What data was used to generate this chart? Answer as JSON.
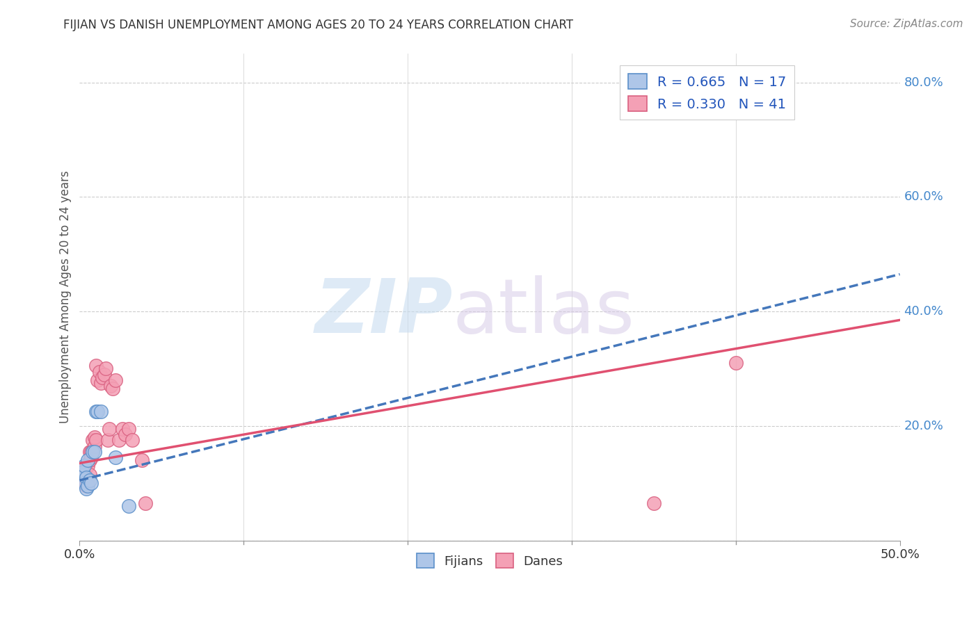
{
  "title": "FIJIAN VS DANISH UNEMPLOYMENT AMONG AGES 20 TO 24 YEARS CORRELATION CHART",
  "source": "Source: ZipAtlas.com",
  "ylabel": "Unemployment Among Ages 20 to 24 years",
  "xlim": [
    0.0,
    0.5
  ],
  "ylim": [
    0.0,
    0.85
  ],
  "xtick_labels_shown": [
    "0.0%",
    "50.0%"
  ],
  "xtick_labels_pos": [
    0.0,
    0.5
  ],
  "xtick_minor_pos": [
    0.1,
    0.2,
    0.3,
    0.4
  ],
  "yticks_right": [
    0.2,
    0.4,
    0.6,
    0.8
  ],
  "background_color": "#ffffff",
  "grid_color": "#cccccc",
  "fijians": {
    "label": "Fijians",
    "color": "#aec6e8",
    "edge_color": "#5b8fc9",
    "R": 0.665,
    "N": 17,
    "line_color": "#4477bb",
    "line_style": "--",
    "points_x": [
      0.001,
      0.002,
      0.003,
      0.003,
      0.004,
      0.004,
      0.005,
      0.005,
      0.006,
      0.007,
      0.008,
      0.009,
      0.01,
      0.011,
      0.013,
      0.022,
      0.03
    ],
    "points_y": [
      0.115,
      0.12,
      0.1,
      0.13,
      0.09,
      0.11,
      0.095,
      0.14,
      0.105,
      0.1,
      0.155,
      0.155,
      0.225,
      0.225,
      0.225,
      0.145,
      0.06
    ],
    "trend_x": [
      0.0,
      0.5
    ],
    "trend_y": [
      0.105,
      0.465
    ]
  },
  "danes": {
    "label": "Danes",
    "color": "#f4a0b5",
    "edge_color": "#d96080",
    "R": 0.33,
    "N": 41,
    "line_color": "#e05070",
    "line_style": "-",
    "points_x": [
      0.001,
      0.001,
      0.002,
      0.002,
      0.003,
      0.003,
      0.004,
      0.004,
      0.005,
      0.005,
      0.006,
      0.006,
      0.006,
      0.007,
      0.007,
      0.008,
      0.008,
      0.009,
      0.009,
      0.01,
      0.01,
      0.011,
      0.012,
      0.013,
      0.014,
      0.015,
      0.016,
      0.017,
      0.018,
      0.019,
      0.02,
      0.022,
      0.024,
      0.026,
      0.028,
      0.03,
      0.032,
      0.038,
      0.04,
      0.35,
      0.4
    ],
    "points_y": [
      0.125,
      0.115,
      0.12,
      0.105,
      0.115,
      0.1,
      0.105,
      0.095,
      0.1,
      0.13,
      0.155,
      0.14,
      0.115,
      0.155,
      0.145,
      0.155,
      0.175,
      0.165,
      0.18,
      0.305,
      0.175,
      0.28,
      0.295,
      0.275,
      0.285,
      0.29,
      0.3,
      0.175,
      0.195,
      0.27,
      0.265,
      0.28,
      0.175,
      0.195,
      0.185,
      0.195,
      0.175,
      0.14,
      0.065,
      0.065,
      0.31
    ],
    "trend_x": [
      0.0,
      0.5
    ],
    "trend_y": [
      0.135,
      0.385
    ]
  },
  "title_color": "#333333",
  "axis_label_color": "#555555",
  "tick_label_color_x": "#333333",
  "tick_label_color_y": "#4488cc",
  "source_color": "#888888",
  "legend_color": "#2255bb"
}
